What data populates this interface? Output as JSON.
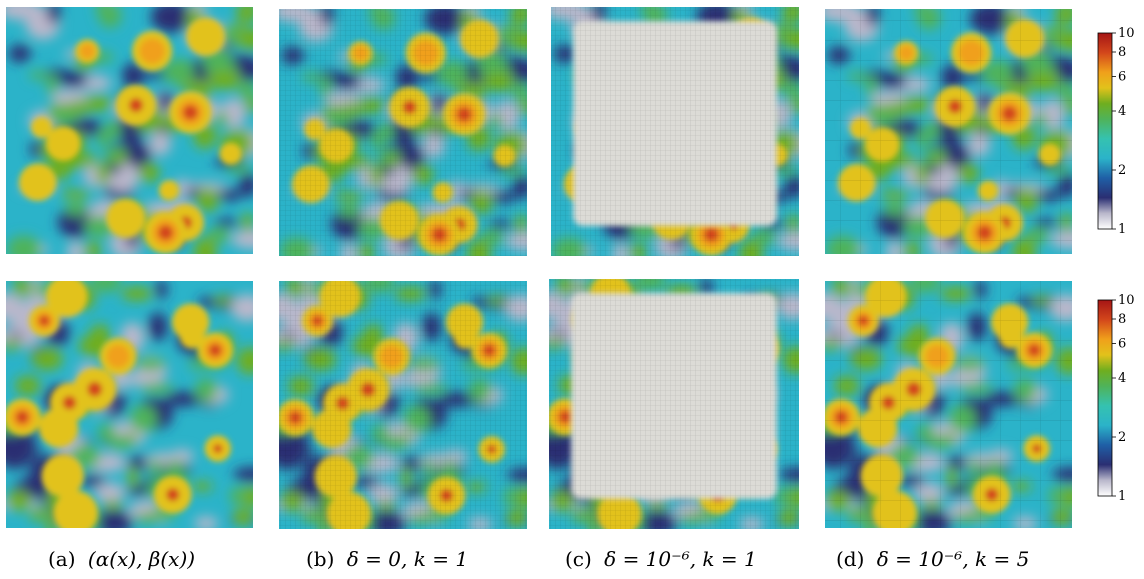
{
  "figure": {
    "rows": [
      {
        "panels": [
          {
            "id": "a",
            "field": "alpha",
            "mesh": "none",
            "masked": false
          },
          {
            "id": "b",
            "field": "alpha",
            "mesh": "fine",
            "masked": false
          },
          {
            "id": "c",
            "field": "alpha",
            "mesh": "fine",
            "masked": true
          },
          {
            "id": "d",
            "field": "alpha",
            "mesh": "coarse",
            "masked": false
          }
        ],
        "colorbar": {
          "ticks": [
            "10",
            "8",
            "6",
            "4",
            "2",
            "1"
          ]
        }
      },
      {
        "panels": [
          {
            "id": "a",
            "field": "beta",
            "mesh": "none",
            "masked": false
          },
          {
            "id": "b",
            "field": "beta",
            "mesh": "fine",
            "masked": false
          },
          {
            "id": "c",
            "field": "beta",
            "mesh": "fine",
            "masked": true
          },
          {
            "id": "d",
            "field": "beta",
            "mesh": "coarse",
            "masked": false
          }
        ],
        "colorbar": {
          "ticks": [
            "10",
            "8",
            "6",
            "4",
            "2",
            "1"
          ]
        }
      }
    ],
    "colorbar_range": [
      1,
      10
    ],
    "colormap": [
      "#ffffff",
      "#b9b7cb",
      "#2a2e72",
      "#1f5fa6",
      "#2bb3c9",
      "#35c2b0",
      "#4fb35a",
      "#6fae1f",
      "#e2c21b",
      "#f0a01b",
      "#d3461b",
      "#a51515"
    ],
    "captions": [
      {
        "label": "(a)",
        "math": "(α(x), β(x))"
      },
      {
        "label": "(b)",
        "math": "δ = 0, k = 1"
      },
      {
        "label": "(c)",
        "math": "δ = 10⁻⁶, k = 1"
      },
      {
        "label": "(d)",
        "math": "δ = 10⁻⁶, k = 5"
      }
    ]
  }
}
